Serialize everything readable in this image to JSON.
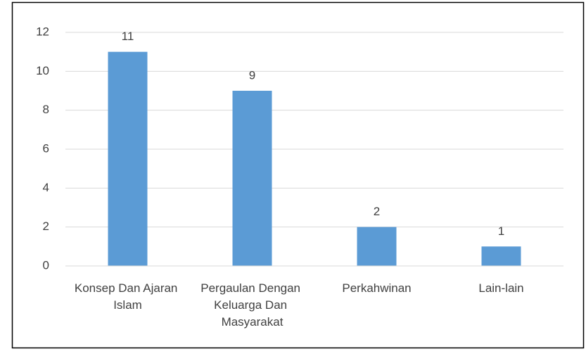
{
  "chart_data": {
    "type": "bar",
    "categories": [
      "Konsep Dan Ajaran Islam",
      "Pergaulan Dengan Keluarga Dan Masyarakat",
      "Perkahwinan",
      "Lain-lain"
    ],
    "values": [
      11,
      9,
      2,
      1
    ],
    "color": "#5b9bd5",
    "ylim": [
      0,
      12
    ],
    "yticks": [
      0,
      2,
      4,
      6,
      8,
      10,
      12
    ],
    "grid": true
  }
}
